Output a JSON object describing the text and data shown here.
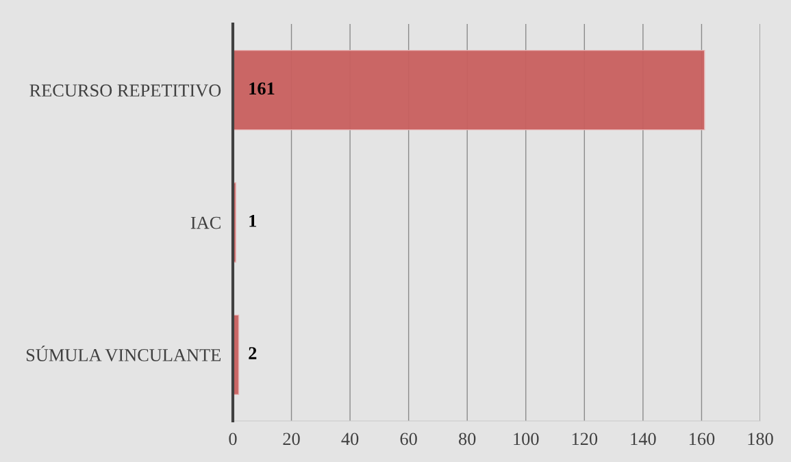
{
  "chart_data": {
    "type": "bar",
    "orientation": "horizontal",
    "categories": [
      "RECURSO REPETITIVO",
      "IAC",
      "SÚMULA VINCULANTE"
    ],
    "values": [
      161,
      1,
      2
    ],
    "color": "#c9605f",
    "data_labels": true,
    "xlim": [
      0,
      180
    ],
    "xticks": [
      0,
      20,
      40,
      60,
      80,
      100,
      120,
      140,
      160,
      180
    ],
    "grid": "x"
  }
}
